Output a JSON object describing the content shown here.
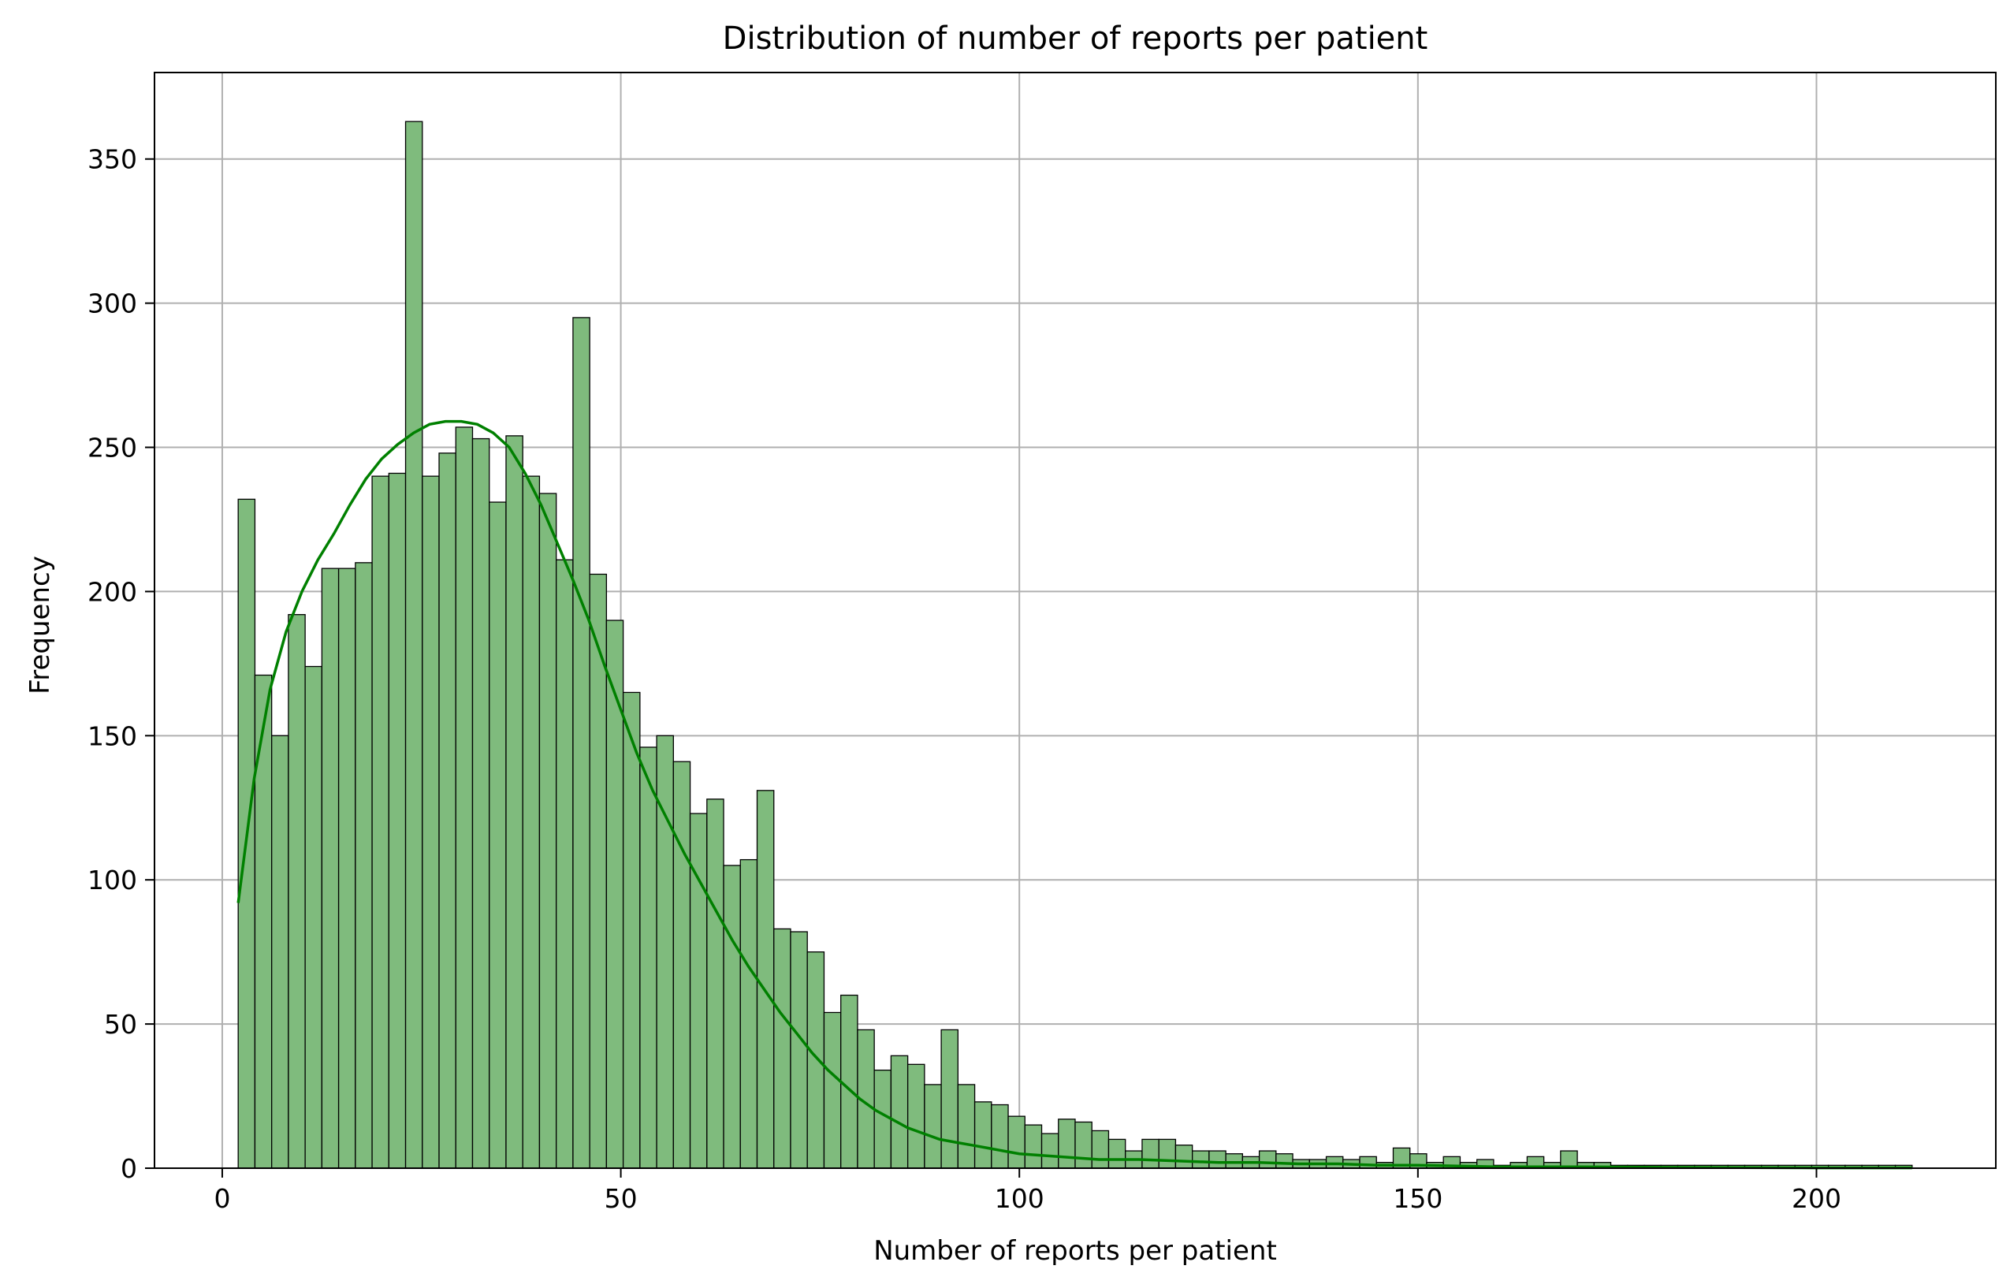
{
  "chart_data": {
    "type": "bar",
    "title": "Distribution of number of reports per patient",
    "xlabel": "Number of reports per patient",
    "ylabel": "Frequency",
    "xlim": [
      -8.5,
      222.5
    ],
    "ylim": [
      0,
      380
    ],
    "xticks": [
      0,
      50,
      100,
      150,
      200
    ],
    "yticks": [
      0,
      50,
      100,
      150,
      200,
      250,
      300,
      350
    ],
    "grid": true,
    "bar_color": "#7fbb7d",
    "bar_edge_color": "#000000",
    "kde_color": "#008000",
    "bin_start": 2,
    "bin_width": 2.1,
    "values": [
      232,
      171,
      150,
      192,
      174,
      208,
      208,
      210,
      240,
      241,
      363,
      240,
      248,
      257,
      253,
      231,
      254,
      240,
      234,
      211,
      295,
      206,
      190,
      165,
      146,
      150,
      141,
      123,
      128,
      105,
      107,
      131,
      83,
      82,
      75,
      54,
      60,
      48,
      34,
      39,
      36,
      29,
      48,
      29,
      23,
      22,
      18,
      15,
      12,
      17,
      16,
      13,
      10,
      6,
      10,
      10,
      8,
      6,
      6,
      5,
      4,
      6,
      5,
      3,
      3,
      4,
      3,
      4,
      2,
      7,
      5,
      2,
      4,
      2,
      3,
      1,
      2,
      4,
      2,
      6,
      2,
      2,
      1,
      1,
      1,
      1,
      1,
      1,
      1,
      1,
      1,
      1,
      1,
      1,
      1,
      1,
      1,
      1,
      1,
      1
    ],
    "kde": {
      "x": [
        2,
        4,
        6,
        8,
        10,
        12,
        14,
        16,
        18,
        20,
        22,
        24,
        26,
        28,
        30,
        32,
        34,
        36,
        38,
        40,
        42,
        44,
        46,
        48,
        50,
        52,
        54,
        56,
        58,
        60,
        62,
        64,
        66,
        68,
        70,
        72,
        74,
        76,
        78,
        80,
        82,
        84,
        86,
        88,
        90,
        92,
        94,
        96,
        98,
        100,
        105,
        110,
        115,
        120,
        125,
        130,
        135,
        140,
        145,
        150,
        160,
        170,
        180,
        190,
        200,
        212
      ],
      "y": [
        92,
        135,
        166,
        186,
        200,
        211,
        220,
        230,
        239,
        246,
        251,
        255,
        258,
        259,
        259,
        258,
        255,
        250,
        241,
        230,
        217,
        204,
        190,
        174,
        159,
        144,
        131,
        120,
        109,
        99,
        89,
        79,
        70,
        62,
        54,
        47,
        40,
        34,
        29,
        24,
        20,
        17,
        14,
        12,
        10,
        9,
        8,
        7,
        6,
        5,
        4,
        3,
        3,
        2.5,
        2,
        2,
        1.5,
        1.5,
        1,
        1,
        0.5,
        0.5,
        0.3,
        0.2,
        0.1,
        0.1
      ]
    }
  }
}
